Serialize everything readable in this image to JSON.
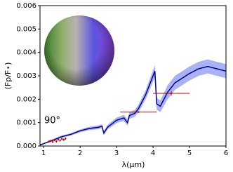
{
  "chart_data": {
    "type": "line",
    "xlabel": "λ(μm)",
    "ylabel": "(Fp/F⋆)",
    "annotation": "90°",
    "xlim": [
      0.9,
      6.0
    ],
    "ylim": [
      0,
      0.006
    ],
    "xticks": [
      1,
      2,
      3,
      4,
      5,
      6
    ],
    "yticks": [
      {
        "value": 0,
        "label": "0.000"
      },
      {
        "value": 0.001,
        "label": "0.001"
      },
      {
        "value": 0.002,
        "label": "0.002"
      },
      {
        "value": 0.003,
        "label": "0.003"
      },
      {
        "value": 0.004,
        "label": "0.004"
      },
      {
        "value": 0.005,
        "label": "0.005"
      },
      {
        "value": 0.006,
        "label": "0.006"
      }
    ],
    "series": [
      {
        "color": "#00008b",
        "band_color": "#6f7ef0",
        "x": [
          0.9,
          1.0,
          1.25,
          1.5,
          1.75,
          2.0,
          2.25,
          2.5,
          2.6,
          2.65,
          2.75,
          3.0,
          3.2,
          3.3,
          3.35,
          3.5,
          3.6,
          3.8,
          4.0,
          4.05,
          4.1,
          4.2,
          4.4,
          4.6,
          4.8,
          5.0,
          5.25,
          5.5,
          5.75,
          6.0
        ],
        "values": [
          5e-05,
          0.0001,
          0.00025,
          0.0004,
          0.0005,
          0.00065,
          0.00075,
          0.0008,
          0.00085,
          0.00055,
          0.0008,
          0.0011,
          0.0012,
          0.001,
          0.0013,
          0.0014,
          0.0016,
          0.0022,
          0.003,
          0.0032,
          0.0018,
          0.0017,
          0.0023,
          0.0027,
          0.0029,
          0.0031,
          0.0033,
          0.0034,
          0.0033,
          0.0032
        ],
        "band_upper": [
          8e-05,
          0.00013,
          0.00029,
          0.00045,
          0.00055,
          0.00071,
          0.00082,
          0.00088,
          0.00093,
          0.00063,
          0.0009,
          0.00122,
          0.00133,
          0.00113,
          0.00144,
          0.00155,
          0.00176,
          0.0024,
          0.00325,
          0.00345,
          0.00205,
          0.00195,
          0.0026,
          0.003,
          0.0032,
          0.0034,
          0.0036,
          0.0037,
          0.0036,
          0.0035
        ],
        "band_lower": [
          2e-05,
          7e-05,
          0.00021,
          0.00035,
          0.00045,
          0.00059,
          0.00068,
          0.00072,
          0.00077,
          0.00047,
          0.0007,
          0.00098,
          0.00107,
          0.00087,
          0.00116,
          0.00125,
          0.00144,
          0.002,
          0.00275,
          0.00295,
          0.00155,
          0.00145,
          0.002,
          0.0024,
          0.0026,
          0.0028,
          0.003,
          0.0031,
          0.003,
          0.0029
        ]
      }
    ],
    "observations": {
      "color": "#c00000",
      "x": [
        1.15,
        1.2,
        1.25,
        1.3,
        1.35,
        1.4,
        1.45,
        1.5,
        1.55,
        1.6,
        3.6,
        4.5
      ],
      "y": [
        0.0002,
        0.00022,
        0.00018,
        0.00025,
        0.0002,
        0.00028,
        0.00024,
        0.0003,
        0.00027,
        0.00032,
        0.00145,
        0.00225
      ],
      "xerr": [
        0.02,
        0.02,
        0.02,
        0.02,
        0.02,
        0.02,
        0.02,
        0.02,
        0.02,
        0.02,
        0.5,
        0.5
      ],
      "yerr": [
        5e-05,
        5e-05,
        5e-05,
        5e-05,
        5e-05,
        5e-05,
        5e-05,
        5e-05,
        5e-05,
        5e-05,
        2e-05,
        0.0001
      ]
    }
  }
}
